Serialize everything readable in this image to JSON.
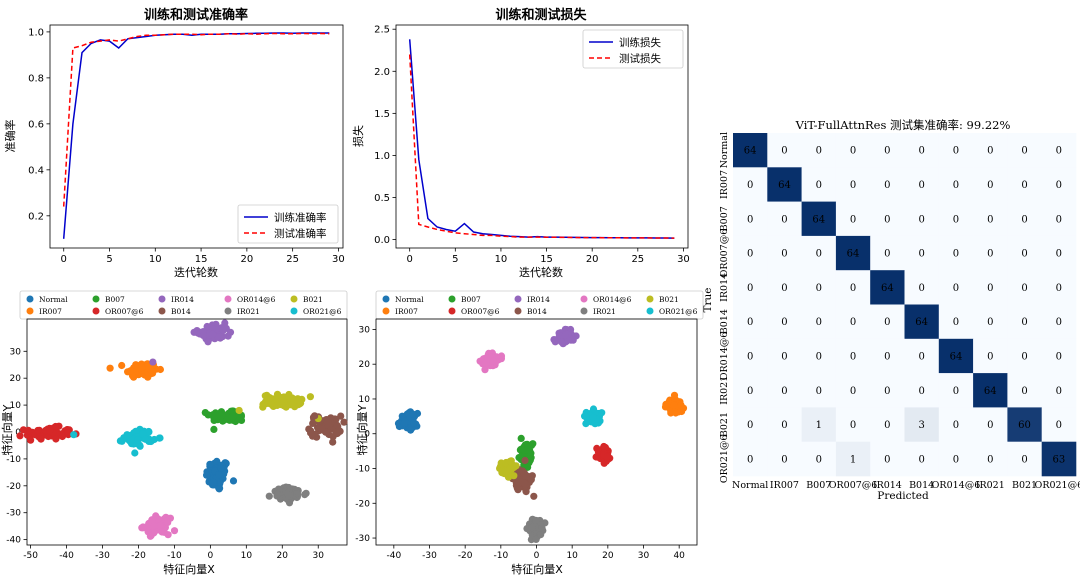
{
  "accuracy_chart": {
    "type": "line",
    "title": "训练和测试准确率",
    "xlabel": "迭代轮数",
    "ylabel": "准确率",
    "xlim": [
      -1.5,
      30.5
    ],
    "ylim": [
      0.06,
      1.03
    ],
    "xticks": [
      0,
      5,
      10,
      15,
      20,
      25,
      30
    ],
    "yticks": [
      0.2,
      0.4,
      0.6,
      0.8,
      1.0
    ],
    "ytick_labels": [
      "0.2",
      "0.4",
      "0.6",
      "0.8",
      "1.0"
    ],
    "series": [
      {
        "name": "训练准确率",
        "color": "#0000cc",
        "dash": "solid",
        "x": [
          0,
          1,
          2,
          3,
          4,
          5,
          6,
          7,
          8,
          9,
          10,
          11,
          12,
          13,
          14,
          15,
          16,
          17,
          18,
          19,
          20,
          21,
          22,
          23,
          24,
          25,
          26,
          27,
          28,
          29
        ],
        "values": [
          0.1,
          0.6,
          0.91,
          0.95,
          0.965,
          0.96,
          0.93,
          0.97,
          0.975,
          0.98,
          0.985,
          0.988,
          0.99,
          0.99,
          0.985,
          0.99,
          0.99,
          0.99,
          0.992,
          0.992,
          0.993,
          0.994,
          0.994,
          0.995,
          0.995,
          0.994,
          0.995,
          0.995,
          0.995,
          0.995
        ]
      },
      {
        "name": "测试准确率",
        "color": "#ff0000",
        "dash": "dashed",
        "x": [
          0,
          1,
          2,
          3,
          4,
          5,
          6,
          7,
          8,
          9,
          10,
          11,
          12,
          13,
          14,
          15,
          16,
          17,
          18,
          19,
          20,
          21,
          22,
          23,
          24,
          25,
          26,
          27,
          28,
          29
        ],
        "values": [
          0.24,
          0.93,
          0.94,
          0.955,
          0.96,
          0.965,
          0.96,
          0.97,
          0.98,
          0.985,
          0.985,
          0.988,
          0.99,
          0.99,
          0.99,
          0.988,
          0.99,
          0.99,
          0.992,
          0.99,
          0.992,
          0.99,
          0.992,
          0.993,
          0.992,
          0.992,
          0.993,
          0.992,
          0.993,
          0.992
        ]
      }
    ],
    "legend_position": "lower-right"
  },
  "loss_chart": {
    "type": "line",
    "title": "训练和测试损失",
    "xlabel": "迭代轮数",
    "ylabel": "损失",
    "xlim": [
      -1.5,
      30.5
    ],
    "ylim": [
      -0.1,
      2.55
    ],
    "xticks": [
      0,
      5,
      10,
      15,
      20,
      25,
      30
    ],
    "yticks": [
      0.0,
      0.5,
      1.0,
      1.5,
      2.0,
      2.5
    ],
    "ytick_labels": [
      "0.0",
      "0.5",
      "1.0",
      "1.5",
      "2.0",
      "2.5"
    ],
    "series": [
      {
        "name": "训练损失",
        "color": "#0000cc",
        "dash": "solid",
        "x": [
          0,
          1,
          2,
          3,
          4,
          5,
          6,
          7,
          8,
          9,
          10,
          11,
          12,
          13,
          14,
          15,
          16,
          17,
          18,
          19,
          20,
          21,
          22,
          23,
          24,
          25,
          26,
          27,
          28,
          29
        ],
        "values": [
          2.38,
          0.95,
          0.25,
          0.15,
          0.12,
          0.1,
          0.19,
          0.09,
          0.07,
          0.06,
          0.05,
          0.04,
          0.035,
          0.03,
          0.035,
          0.03,
          0.03,
          0.028,
          0.026,
          0.025,
          0.024,
          0.023,
          0.022,
          0.021,
          0.02,
          0.02,
          0.02,
          0.019,
          0.019,
          0.018
        ]
      },
      {
        "name": "测试损失",
        "color": "#ff0000",
        "dash": "dashed",
        "x": [
          0,
          1,
          2,
          3,
          4,
          5,
          6,
          7,
          8,
          9,
          10,
          11,
          12,
          13,
          14,
          15,
          16,
          17,
          18,
          19,
          20,
          21,
          22,
          23,
          24,
          25,
          26,
          27,
          28,
          29
        ],
        "values": [
          2.2,
          0.18,
          0.15,
          0.12,
          0.1,
          0.08,
          0.07,
          0.06,
          0.05,
          0.05,
          0.04,
          0.035,
          0.03,
          0.03,
          0.03,
          0.028,
          0.027,
          0.026,
          0.025,
          0.024,
          0.023,
          0.022,
          0.022,
          0.021,
          0.02,
          0.02,
          0.02,
          0.019,
          0.019,
          0.018
        ]
      }
    ],
    "legend_position": "upper-right"
  },
  "tsne_legend": {
    "labels": [
      "Normal",
      "IR007",
      "B007",
      "OR007@6",
      "IR014",
      "B014",
      "OR014@6",
      "IR021",
      "B021",
      "OR021@6"
    ],
    "colors": [
      "#1f77b4",
      "#ff7f0e",
      "#2ca02c",
      "#d62728",
      "#9467bd",
      "#8c564b",
      "#e377c2",
      "#7f7f7f",
      "#bcbd22",
      "#17becf"
    ]
  },
  "tsne_left": {
    "type": "scatter",
    "xlabel": "特征向量X",
    "ylabel": "特征向量Y",
    "xlim": [
      -51,
      38
    ],
    "ylim": [
      -42,
      42
    ],
    "xticks": [
      -50,
      -40,
      -30,
      -20,
      -10,
      0,
      10,
      20,
      30
    ],
    "yticks": [
      -40,
      -30,
      -20,
      -10,
      0,
      10,
      20,
      30
    ],
    "clusters": [
      {
        "label": "Normal",
        "cx": 2,
        "cy": -16,
        "sx": 1.6,
        "sy": 3.0
      },
      {
        "label": "IR007",
        "cx": -19,
        "cy": 23,
        "sx": 2.2,
        "sy": 1.5
      },
      {
        "label": "B007",
        "cx": 5,
        "cy": 6,
        "sx": 2.6,
        "sy": 1.2
      },
      {
        "label": "OR007@6",
        "cx": -45,
        "cy": -0.5,
        "sx": 3.2,
        "sy": 1.1
      },
      {
        "label": "IR014",
        "cx": 1,
        "cy": 37,
        "sx": 2.2,
        "sy": 1.5
      },
      {
        "label": "B014",
        "cx": 32,
        "cy": 2,
        "sx": 2.2,
        "sy": 2.0
      },
      {
        "label": "OR014@6",
        "cx": -15,
        "cy": -35,
        "sx": 1.8,
        "sy": 1.5
      },
      {
        "label": "IR021",
        "cx": 22,
        "cy": -23,
        "sx": 2.4,
        "sy": 1.2
      },
      {
        "label": "B021",
        "cx": 20,
        "cy": 11.5,
        "sx": 2.6,
        "sy": 1.2
      },
      {
        "label": "OR021@6",
        "cx": -20,
        "cy": -2,
        "sx": 2.0,
        "sy": 1.5
      }
    ],
    "outliers": [
      {
        "label": "IR014",
        "x": -16,
        "y": 26
      },
      {
        "label": "B021",
        "x": 8,
        "y": 8
      },
      {
        "label": "B021",
        "x": 30,
        "y": 5
      },
      {
        "label": "B014",
        "x": 29,
        "y": 6
      },
      {
        "label": "OR021@6",
        "x": -38,
        "y": -1
      }
    ]
  },
  "tsne_right": {
    "type": "scatter",
    "xlabel": "特征向量X",
    "ylabel": "特征向量Y",
    "xlim": [
      -45,
      45
    ],
    "ylim": [
      -32,
      33
    ],
    "xticks": [
      -40,
      -30,
      -20,
      -10,
      0,
      10,
      20,
      30,
      40
    ],
    "yticks": [
      -30,
      -20,
      -10,
      0,
      10,
      20,
      30
    ],
    "clusters": [
      {
        "label": "Normal",
        "cx": -36,
        "cy": 3.5,
        "sx": 1.2,
        "sy": 1.2
      },
      {
        "label": "IR007",
        "cx": 39,
        "cy": 8,
        "sx": 1.2,
        "sy": 1.0
      },
      {
        "label": "B007",
        "cx": -3,
        "cy": -6,
        "sx": 1.0,
        "sy": 1.5
      },
      {
        "label": "OR007@6",
        "cx": 19,
        "cy": -6,
        "sx": 1.0,
        "sy": 1.0
      },
      {
        "label": "IR014",
        "cx": 8,
        "cy": 28,
        "sx": 1.2,
        "sy": 1.0
      },
      {
        "label": "B014",
        "cx": -4,
        "cy": -13,
        "sx": 1.2,
        "sy": 1.5
      },
      {
        "label": "OR014@6",
        "cx": -13,
        "cy": 21,
        "sx": 1.2,
        "sy": 0.9
      },
      {
        "label": "IR021",
        "cx": 0,
        "cy": -27,
        "sx": 1.0,
        "sy": 1.2
      },
      {
        "label": "B021",
        "cx": -8,
        "cy": -10,
        "sx": 1.0,
        "sy": 1.0
      },
      {
        "label": "OR021@6",
        "cx": 16,
        "cy": 5,
        "sx": 1.0,
        "sy": 1.0
      }
    ],
    "outliers": []
  },
  "confusion_matrix": {
    "type": "heatmap",
    "title": "ViT-FullAttnRes 测试集准确率: 99.22%",
    "xlabel": "Predicted",
    "ylabel": "True",
    "labels": [
      "Normal",
      "IR007",
      "B007",
      "OR007@6",
      "IR014",
      "B014",
      "OR014@6",
      "IR021",
      "B021",
      "OR021@6"
    ],
    "matrix": [
      [
        64,
        0,
        0,
        0,
        0,
        0,
        0,
        0,
        0,
        0
      ],
      [
        0,
        64,
        0,
        0,
        0,
        0,
        0,
        0,
        0,
        0
      ],
      [
        0,
        0,
        64,
        0,
        0,
        0,
        0,
        0,
        0,
        0
      ],
      [
        0,
        0,
        0,
        64,
        0,
        0,
        0,
        0,
        0,
        0
      ],
      [
        0,
        0,
        0,
        0,
        64,
        0,
        0,
        0,
        0,
        0
      ],
      [
        0,
        0,
        0,
        0,
        0,
        64,
        0,
        0,
        0,
        0
      ],
      [
        0,
        0,
        0,
        0,
        0,
        0,
        64,
        0,
        0,
        0
      ],
      [
        0,
        0,
        0,
        0,
        0,
        0,
        0,
        64,
        0,
        0
      ],
      [
        0,
        0,
        1,
        0,
        0,
        3,
        0,
        0,
        60,
        0
      ],
      [
        0,
        0,
        0,
        1,
        0,
        0,
        0,
        0,
        0,
        63
      ]
    ],
    "max": 64,
    "color_low": "#f7fbff",
    "color_high": "#08306b"
  }
}
